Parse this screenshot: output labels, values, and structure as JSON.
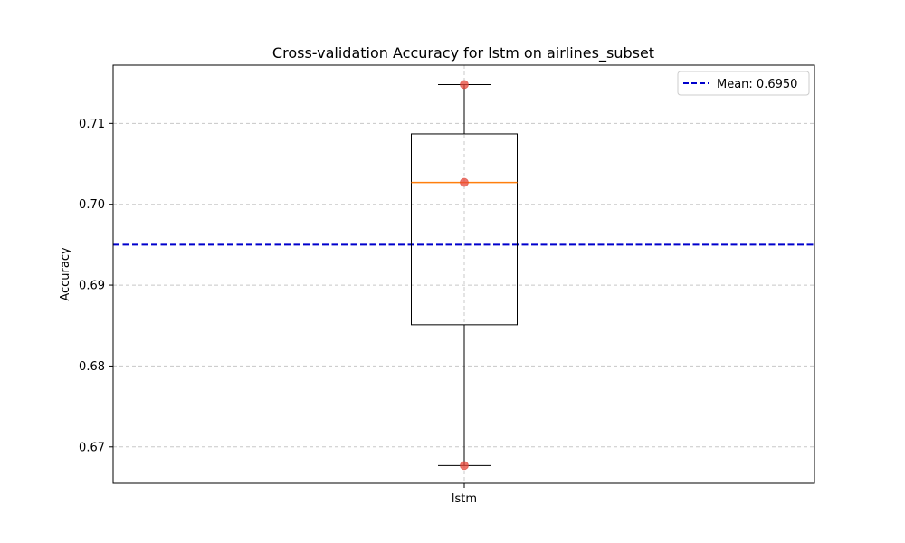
{
  "chart_data": {
    "type": "box",
    "title": "Cross-validation Accuracy for lstm on airlines_subset",
    "xlabel": "",
    "ylabel": "Accuracy",
    "categories": [
      "lstm"
    ],
    "ylim": [
      0.6655,
      0.7172
    ],
    "yticks": [
      0.67,
      0.68,
      0.69,
      0.7,
      0.71
    ],
    "ytick_labels": [
      "0.67",
      "0.68",
      "0.69",
      "0.70",
      "0.71"
    ],
    "grid": true,
    "box": {
      "whisker_low": 0.6677,
      "q1": 0.6851,
      "median": 0.7027,
      "q3": 0.7087,
      "whisker_high": 0.7148
    },
    "points": [
      0.7148,
      0.7027,
      0.6677
    ],
    "mean_line": {
      "value": 0.695,
      "label": "Mean: 0.6950",
      "color": "#0000cc",
      "style": "dashed"
    },
    "legend_position": "top-right",
    "colors": {
      "box": "#000000",
      "median": "#ff7f0e",
      "points": "#e8473a",
      "grid": "#c8c8c8"
    }
  }
}
